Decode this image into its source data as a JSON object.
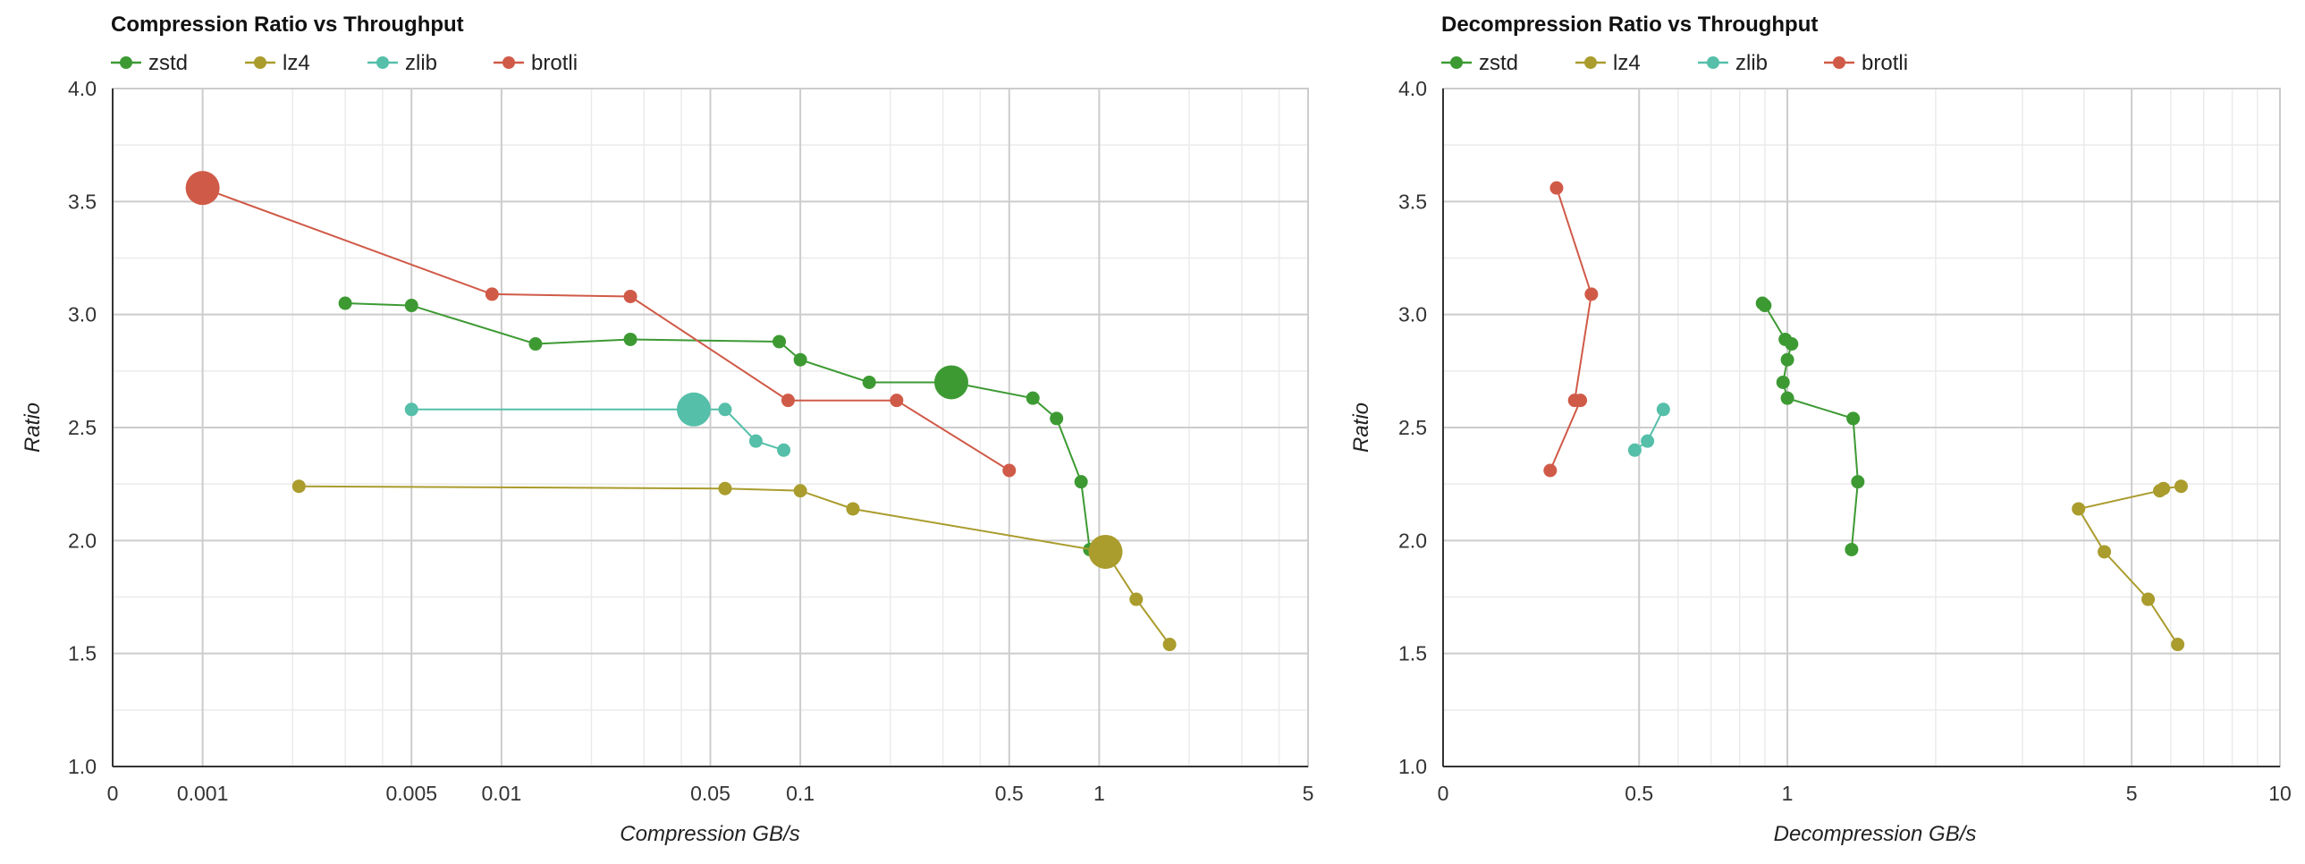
{
  "colors": {
    "zstd": "#3d9a33",
    "lz4": "#aa9c2d",
    "zlib": "#55bfa9",
    "brotli": "#d05a48"
  },
  "chart_data": [
    {
      "type": "scatter",
      "title": "Compression Ratio vs Throughput",
      "xlabel": "Compression GB/s",
      "ylabel": "Ratio",
      "x_scale": "log",
      "xlim": [
        0.0005,
        5
      ],
      "ylim": [
        1.0,
        4.0
      ],
      "x_ticks": [
        "0",
        "0.001",
        "0.005",
        "0.01",
        "0.05",
        "0.1",
        "0.5",
        "1",
        "5"
      ],
      "y_ticks": [
        "1.0",
        "1.5",
        "2.0",
        "2.5",
        "3.0",
        "3.5",
        "4.0"
      ],
      "grid": true,
      "legend": "top-left",
      "series": [
        {
          "name": "zstd",
          "points": [
            [
              0.003,
              3.05
            ],
            [
              0.005,
              3.04
            ],
            [
              0.013,
              2.87
            ],
            [
              0.027,
              2.89
            ],
            [
              0.085,
              2.88
            ],
            [
              0.1,
              2.8
            ],
            [
              0.17,
              2.7
            ],
            [
              0.32,
              2.7
            ],
            [
              0.6,
              2.63
            ],
            [
              0.72,
              2.54
            ],
            [
              0.87,
              2.26
            ],
            [
              0.93,
              1.96
            ]
          ],
          "highlight": [
            0.32,
            2.7
          ]
        },
        {
          "name": "lz4",
          "points": [
            [
              0.0021,
              2.24
            ],
            [
              0.056,
              2.23
            ],
            [
              0.1,
              2.22
            ],
            [
              0.15,
              2.14
            ],
            [
              1.05,
              1.95
            ],
            [
              1.33,
              1.74
            ],
            [
              1.72,
              1.54
            ]
          ],
          "highlight": [
            1.05,
            1.95
          ]
        },
        {
          "name": "zlib",
          "points": [
            [
              0.005,
              2.58
            ],
            [
              0.044,
              2.58
            ],
            [
              0.056,
              2.58
            ],
            [
              0.071,
              2.44
            ],
            [
              0.088,
              2.4
            ]
          ],
          "highlight": [
            0.044,
            2.58
          ]
        },
        {
          "name": "brotli",
          "points": [
            [
              0.001,
              3.56
            ],
            [
              0.0093,
              3.09
            ],
            [
              0.027,
              3.08
            ],
            [
              0.091,
              2.62
            ],
            [
              0.21,
              2.62
            ],
            [
              0.5,
              2.31
            ]
          ],
          "highlight": [
            0.001,
            3.56
          ]
        }
      ]
    },
    {
      "type": "scatter",
      "title": "Decompression Ratio vs Throughput",
      "xlabel": "Decompression GB/s",
      "ylabel": "Ratio",
      "x_scale": "log",
      "xlim": [
        0.2,
        10
      ],
      "ylim": [
        1.0,
        4.0
      ],
      "x_ticks": [
        "0",
        "0.5",
        "1",
        "5",
        "10"
      ],
      "y_ticks": [
        "1.0",
        "1.5",
        "2.0",
        "2.5",
        "3.0",
        "3.5",
        "4.0"
      ],
      "grid": true,
      "legend": "top-left",
      "series": [
        {
          "name": "zstd",
          "points": [
            [
              0.89,
              3.05
            ],
            [
              0.9,
              3.04
            ],
            [
              0.99,
              2.89
            ],
            [
              1.02,
              2.87
            ],
            [
              1.0,
              2.8
            ],
            [
              0.98,
              2.7
            ],
            [
              1.0,
              2.63
            ],
            [
              1.36,
              2.54
            ],
            [
              1.39,
              2.26
            ],
            [
              1.35,
              1.96
            ]
          ]
        },
        {
          "name": "lz4",
          "points": [
            [
              6.3,
              2.24
            ],
            [
              5.8,
              2.23
            ],
            [
              5.7,
              2.22
            ],
            [
              3.9,
              2.14
            ],
            [
              4.4,
              1.95
            ],
            [
              5.4,
              1.74
            ],
            [
              6.2,
              1.54
            ]
          ]
        },
        {
          "name": "zlib",
          "points": [
            [
              0.56,
              2.58
            ],
            [
              0.52,
              2.44
            ],
            [
              0.49,
              2.4
            ]
          ]
        },
        {
          "name": "brotli",
          "points": [
            [
              0.34,
              3.56
            ],
            [
              0.4,
              3.09
            ],
            [
              0.37,
              2.62
            ],
            [
              0.38,
              2.62
            ],
            [
              0.33,
              2.31
            ]
          ]
        }
      ]
    }
  ]
}
